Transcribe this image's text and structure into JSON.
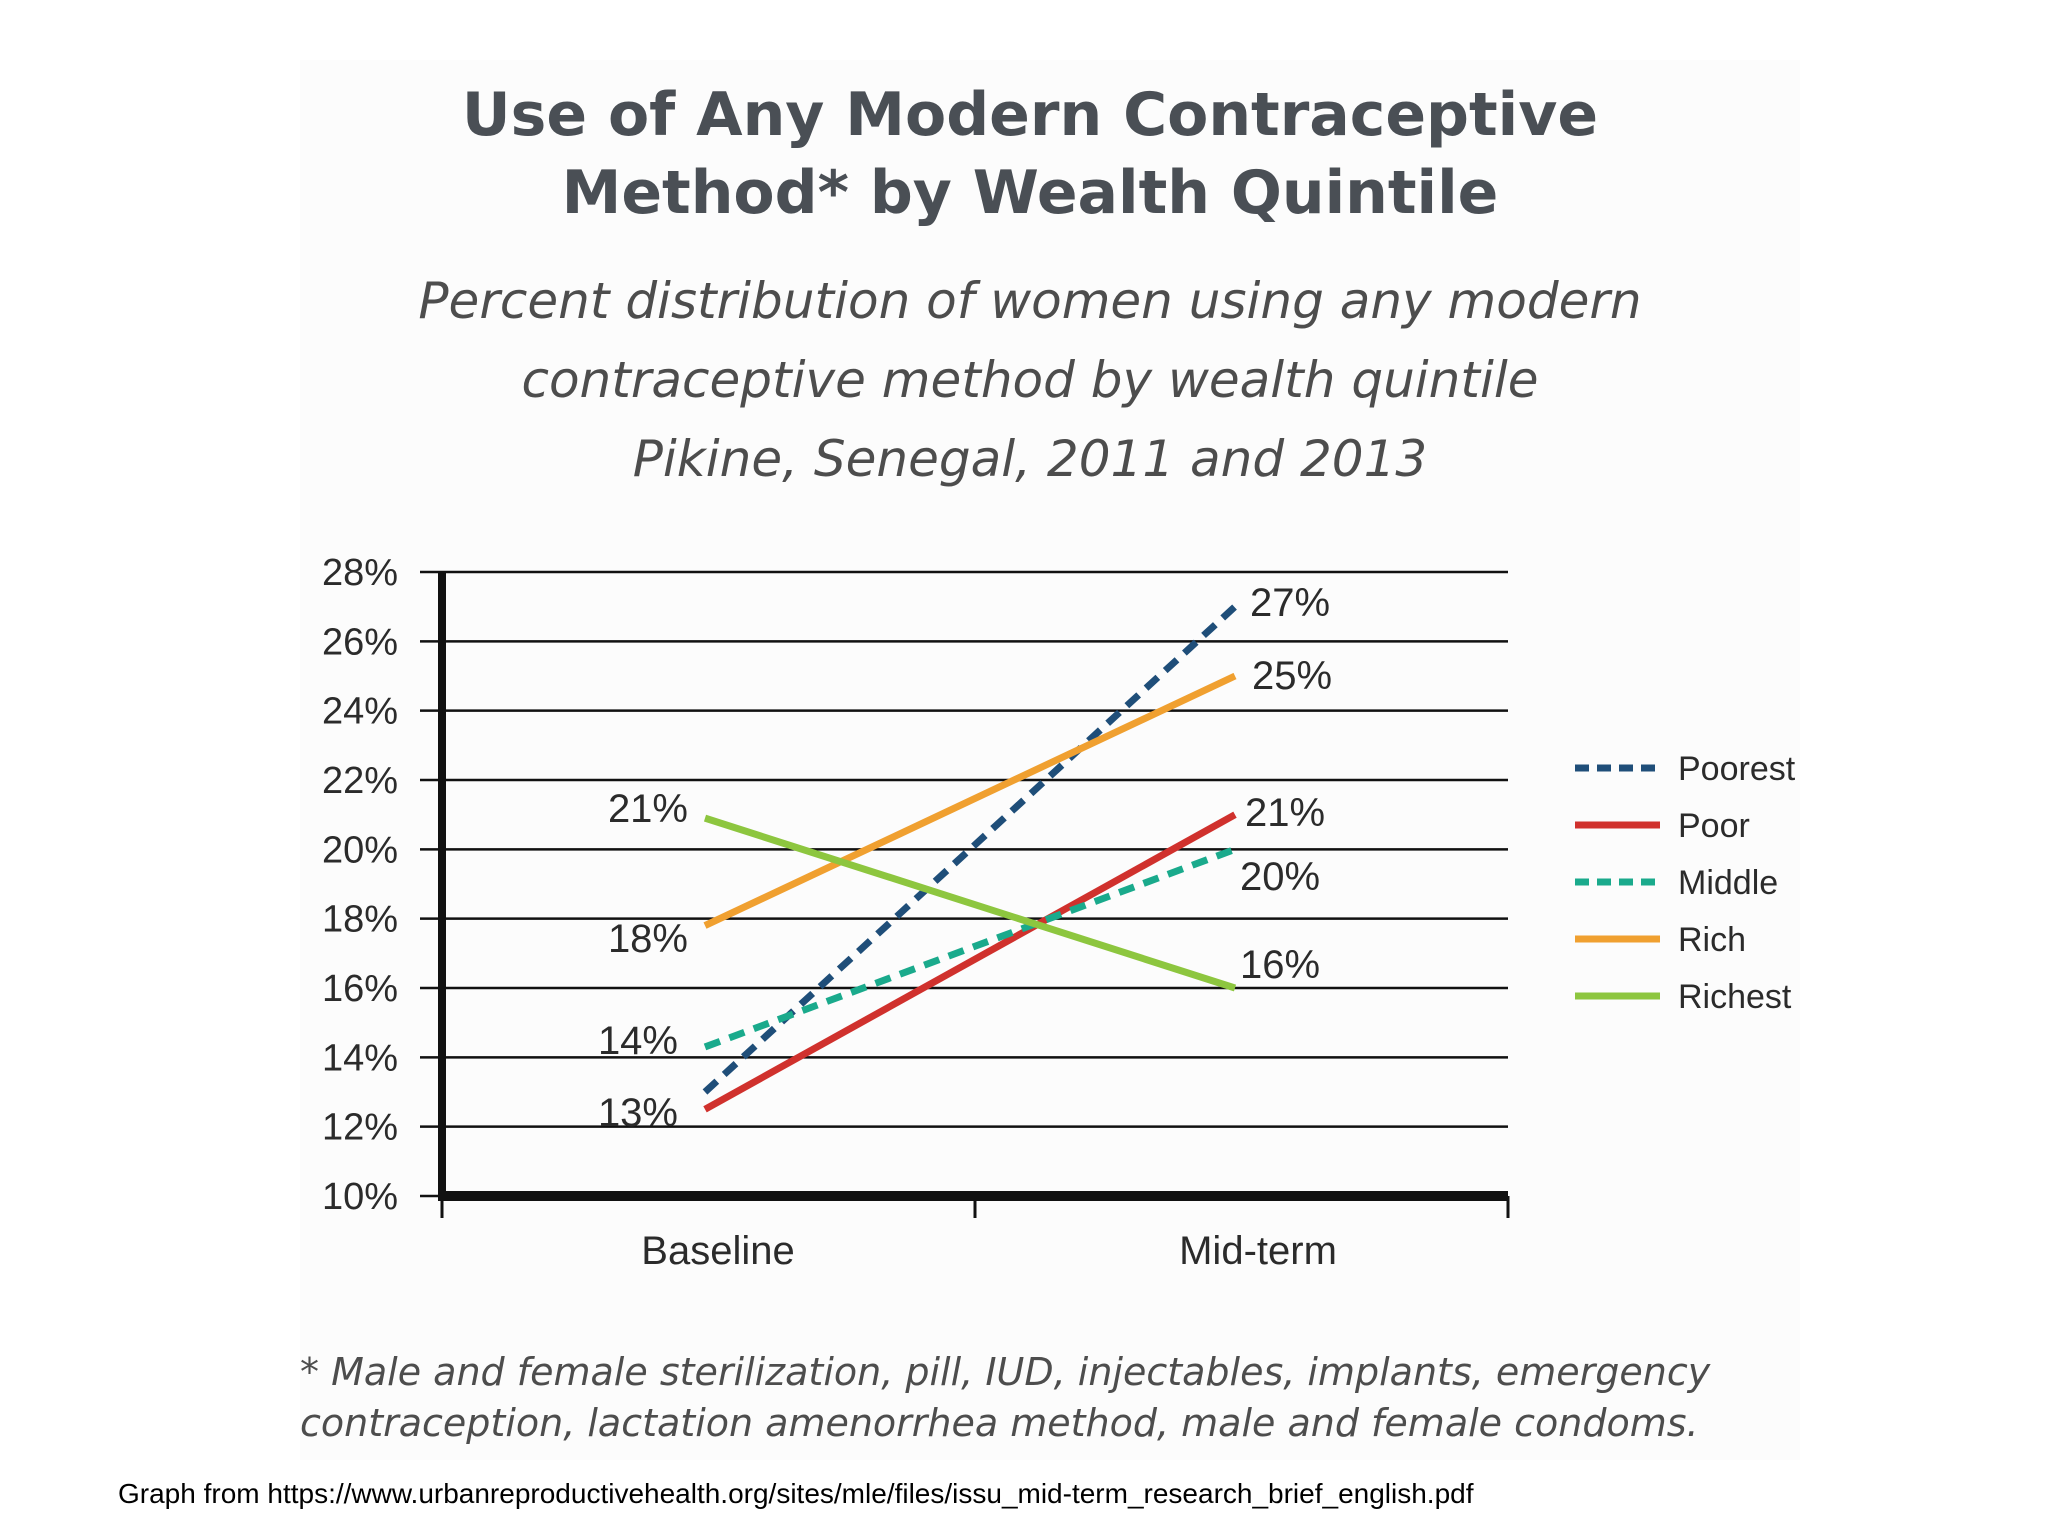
{
  "chart_data": {
    "type": "line",
    "title": [
      "Use of Any Modern Contraceptive",
      "Method* by Wealth Quintile"
    ],
    "subtitle": [
      "Percent distribution of women using any modern",
      "contraceptive method by wealth quintile",
      "Pikine, Senegal, 2011 and 2013"
    ],
    "categories": [
      "Baseline",
      "Mid-term"
    ],
    "ylim": [
      10,
      28
    ],
    "y_ticks": [
      "10%",
      "12%",
      "14%",
      "16%",
      "18%",
      "20%",
      "22%",
      "24%",
      "26%",
      "28%"
    ],
    "grid": true,
    "legend_position": "right",
    "series": [
      {
        "name": "Poorest",
        "values": [
          13,
          27
        ],
        "color": "#1f4e79",
        "dash": "dashed",
        "labels": [
          "",
          "27%"
        ]
      },
      {
        "name": "Poor",
        "values": [
          12.5,
          21
        ],
        "color": "#d0312d",
        "dash": "solid",
        "labels": [
          "13%",
          "21%"
        ]
      },
      {
        "name": "Middle",
        "values": [
          14.3,
          20
        ],
        "color": "#1aaa8c",
        "dash": "dashed",
        "labels": [
          "14%",
          "20%"
        ]
      },
      {
        "name": "Rich",
        "values": [
          17.8,
          25
        ],
        "color": "#f0a030",
        "dash": "solid",
        "labels": [
          "18%",
          "25%"
        ]
      },
      {
        "name": "Richest",
        "values": [
          20.9,
          16
        ],
        "color": "#8dc63f",
        "dash": "solid",
        "labels": [
          "21%",
          "16%"
        ]
      }
    ],
    "footnote": [
      "* Male and female sterilization, pill, IUD, injectables, implants, emergency",
      "contraception, lactation amenorrhea method, male and female condoms."
    ]
  },
  "source_note": "Graph from https://www.urbanreproductivehealth.org/sites/mle/files/issu_mid-term_research_brief_english.pdf"
}
